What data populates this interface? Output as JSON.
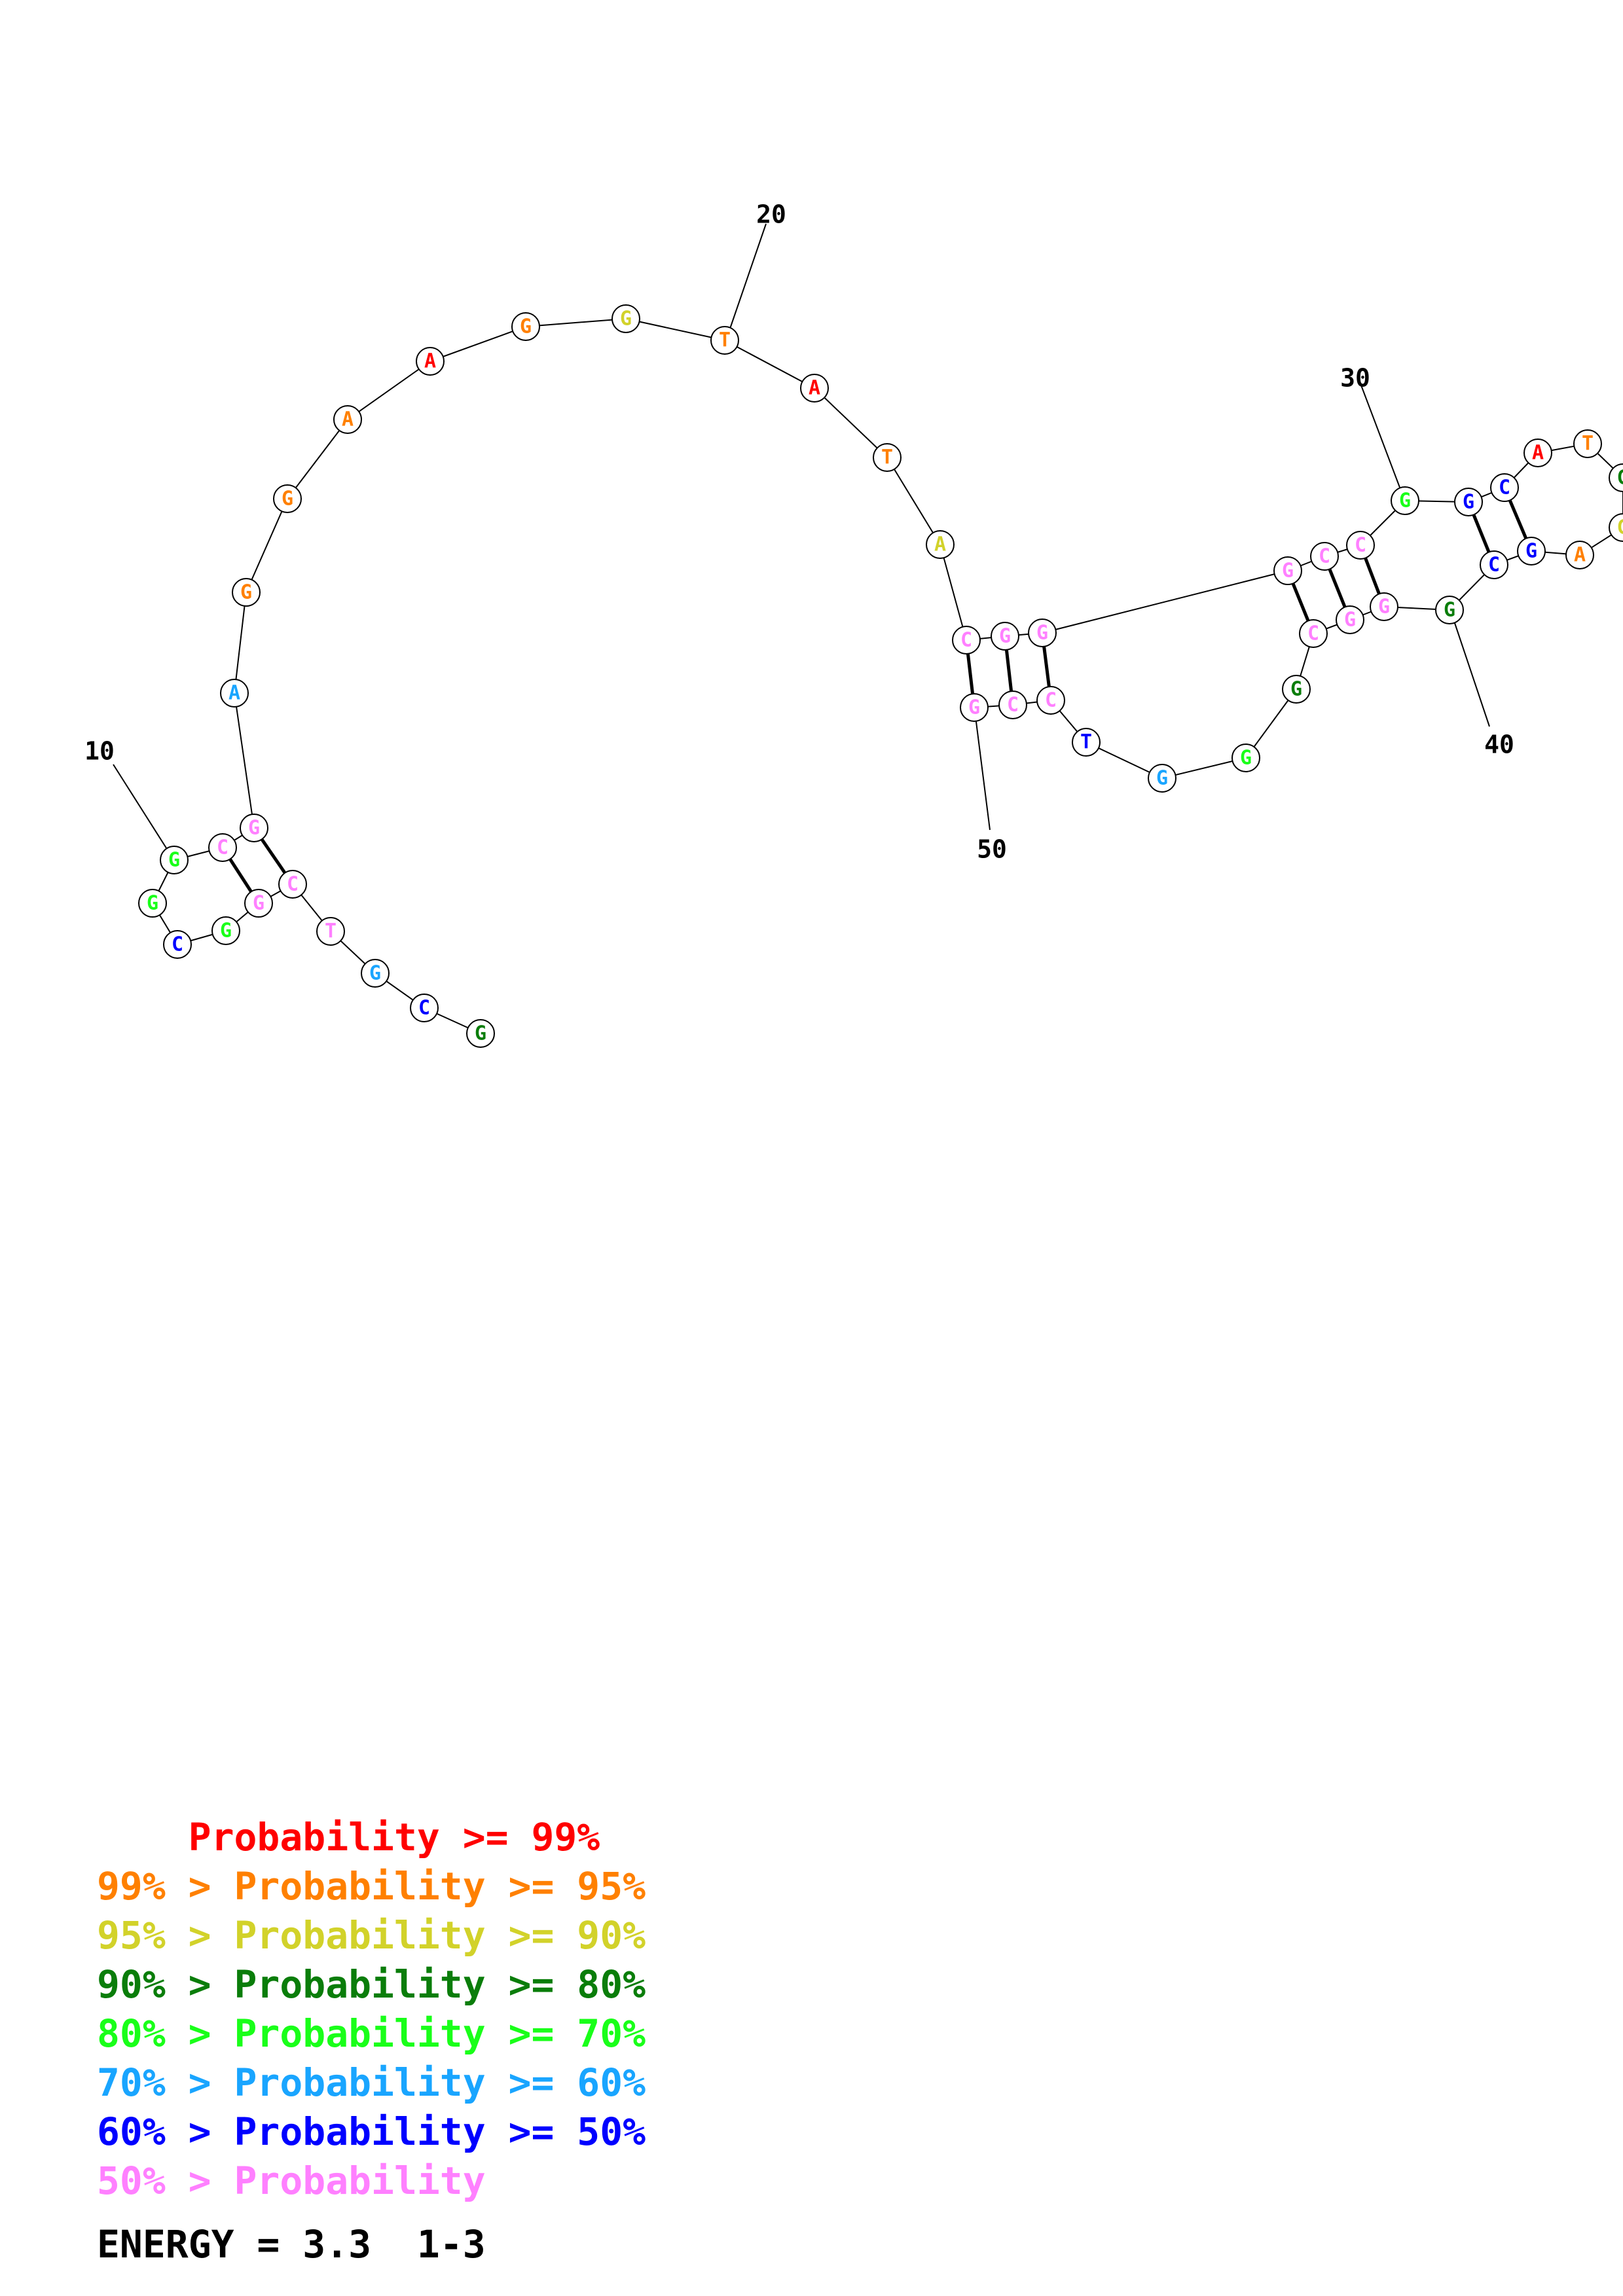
{
  "colors": {
    "red": "#ff0000",
    "orange": "#ff8000",
    "yellow": "#d2d22a",
    "dark_green": "#0a7d0a",
    "green": "#19ff19",
    "light_blue": "#19a5ff",
    "blue": "#0000ff",
    "pink": "#ff80ff"
  },
  "sequence": [
    {
      "n": 1,
      "base": "G",
      "color": "dark_green"
    },
    {
      "n": 2,
      "base": "C",
      "color": "blue"
    },
    {
      "n": 3,
      "base": "G",
      "color": "light_blue"
    },
    {
      "n": 4,
      "base": "T",
      "color": "pink"
    },
    {
      "n": 5,
      "base": "C",
      "color": "pink"
    },
    {
      "n": 6,
      "base": "G",
      "color": "pink"
    },
    {
      "n": 7,
      "base": "G",
      "color": "green"
    },
    {
      "n": 8,
      "base": "C",
      "color": "blue"
    },
    {
      "n": 9,
      "base": "G",
      "color": "green"
    },
    {
      "n": 10,
      "base": "G",
      "color": "green"
    },
    {
      "n": 11,
      "base": "C",
      "color": "pink"
    },
    {
      "n": 12,
      "base": "G",
      "color": "pink"
    },
    {
      "n": 13,
      "base": "A",
      "color": "light_blue"
    },
    {
      "n": 14,
      "base": "G",
      "color": "orange"
    },
    {
      "n": 15,
      "base": "G",
      "color": "orange"
    },
    {
      "n": 16,
      "base": "A",
      "color": "orange"
    },
    {
      "n": 17,
      "base": "A",
      "color": "red"
    },
    {
      "n": 18,
      "base": "G",
      "color": "orange"
    },
    {
      "n": 19,
      "base": "G",
      "color": "yellow"
    },
    {
      "n": 20,
      "base": "T",
      "color": "orange"
    },
    {
      "n": 21,
      "base": "A",
      "color": "red"
    },
    {
      "n": 22,
      "base": "T",
      "color": "orange"
    },
    {
      "n": 23,
      "base": "A",
      "color": "yellow"
    },
    {
      "n": 24,
      "base": "C",
      "color": "pink"
    },
    {
      "n": 25,
      "base": "G",
      "color": "pink"
    },
    {
      "n": 26,
      "base": "G",
      "color": "pink"
    },
    {
      "n": 27,
      "base": "G",
      "color": "pink"
    },
    {
      "n": 28,
      "base": "C",
      "color": "pink"
    },
    {
      "n": 29,
      "base": "C",
      "color": "pink"
    },
    {
      "n": 30,
      "base": "G",
      "color": "green"
    },
    {
      "n": 31,
      "base": "G",
      "color": "blue"
    },
    {
      "n": 32,
      "base": "C",
      "color": "blue"
    },
    {
      "n": 33,
      "base": "A",
      "color": "red"
    },
    {
      "n": 34,
      "base": "T",
      "color": "orange"
    },
    {
      "n": 35,
      "base": "G",
      "color": "dark_green"
    },
    {
      "n": 36,
      "base": "G",
      "color": "yellow"
    },
    {
      "n": 37,
      "base": "A",
      "color": "orange"
    },
    {
      "n": 38,
      "base": "G",
      "color": "blue"
    },
    {
      "n": 39,
      "base": "C",
      "color": "blue"
    },
    {
      "n": 40,
      "base": "G",
      "color": "dark_green"
    },
    {
      "n": 41,
      "base": "G",
      "color": "pink"
    },
    {
      "n": 42,
      "base": "G",
      "color": "pink"
    },
    {
      "n": 43,
      "base": "C",
      "color": "pink"
    },
    {
      "n": 44,
      "base": "G",
      "color": "dark_green"
    },
    {
      "n": 45,
      "base": "G",
      "color": "green"
    },
    {
      "n": 46,
      "base": "G",
      "color": "light_blue"
    },
    {
      "n": 47,
      "base": "T",
      "color": "blue"
    },
    {
      "n": 48,
      "base": "C",
      "color": "pink"
    },
    {
      "n": 49,
      "base": "C",
      "color": "pink"
    },
    {
      "n": 50,
      "base": "G",
      "color": "pink"
    }
  ],
  "pairs": [
    [
      5,
      12
    ],
    [
      6,
      11
    ],
    [
      24,
      50
    ],
    [
      25,
      49
    ],
    [
      26,
      48
    ],
    [
      27,
      43
    ],
    [
      28,
      42
    ],
    [
      29,
      41
    ],
    [
      31,
      39
    ],
    [
      32,
      38
    ]
  ],
  "position_labels": [
    {
      "n": 10,
      "text": "10"
    },
    {
      "n": 20,
      "text": "20"
    },
    {
      "n": 30,
      "text": "30"
    },
    {
      "n": 40,
      "text": "40"
    },
    {
      "n": 50,
      "text": "50"
    }
  ],
  "legend": [
    {
      "text": "    Probability >= 99%",
      "color": "#ff0000"
    },
    {
      "text": "99% > Probability >= 95%",
      "color": "#ff8000"
    },
    {
      "text": "95% > Probability >= 90%",
      "color": "#d2d22a"
    },
    {
      "text": "90% > Probability >= 80%",
      "color": "#0a7d0a"
    },
    {
      "text": "80% > Probability >= 70%",
      "color": "#19ff19"
    },
    {
      "text": "70% > Probability >= 60%",
      "color": "#19a5ff"
    },
    {
      "text": "60% > Probability >= 50%",
      "color": "#0000ff"
    },
    {
      "text": "50% > Probability",
      "color": "#ff80ff"
    }
  ],
  "energy_text": "ENERGY = 3.3  1-3"
}
